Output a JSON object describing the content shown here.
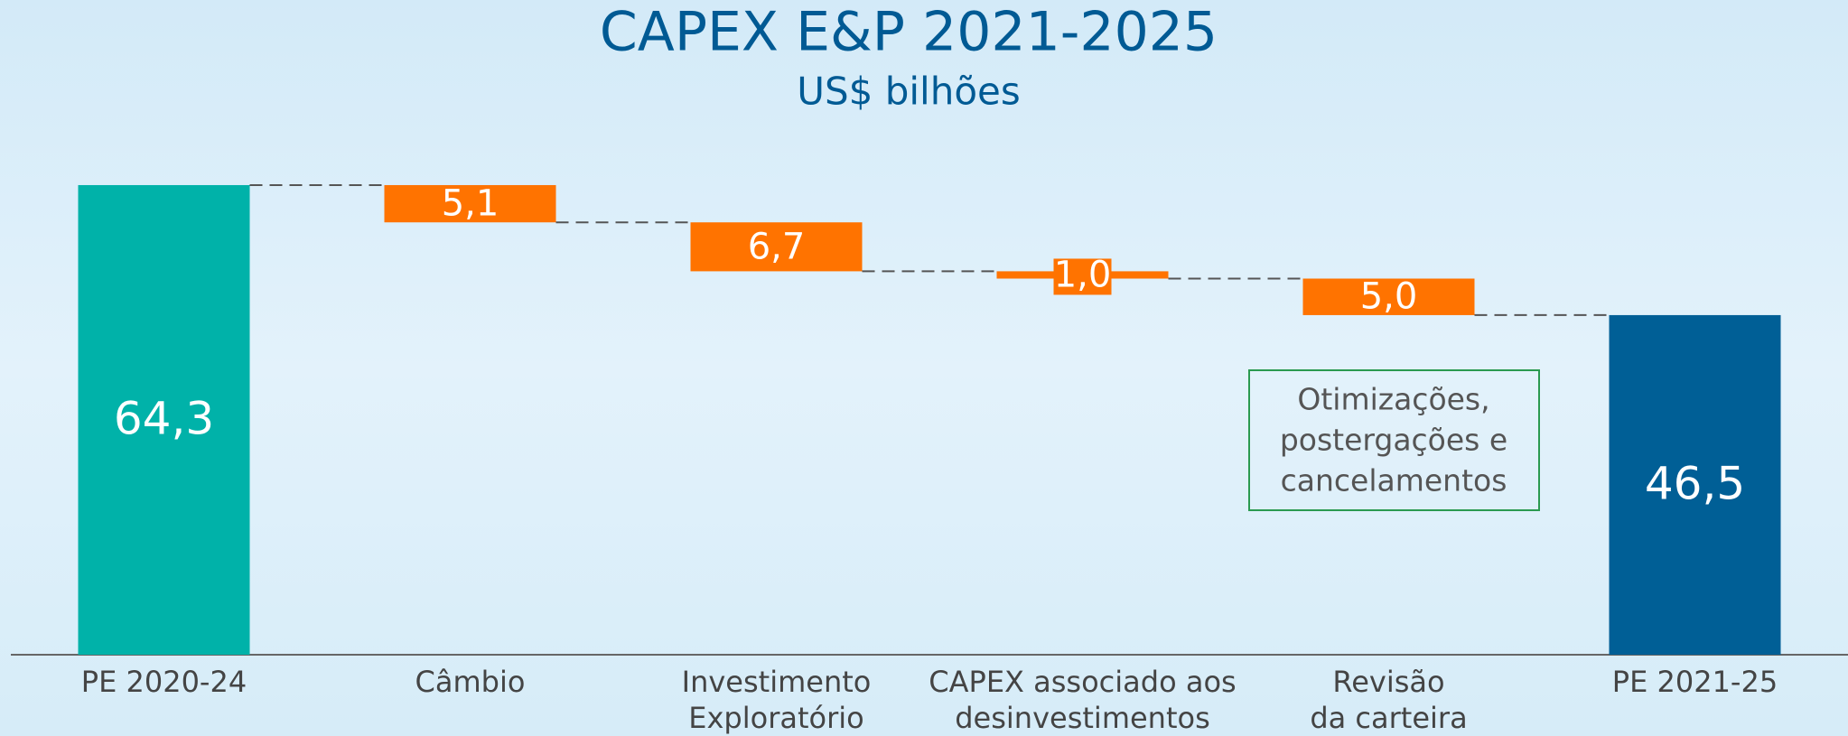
{
  "chart_data": {
    "type": "waterfall",
    "title": "CAPEX E&P 2021-2025",
    "subtitle": "US$ bilhões",
    "categories": [
      [
        "PE 2020-24"
      ],
      [
        "Câmbio"
      ],
      [
        "Investimento",
        "Exploratório"
      ],
      [
        "CAPEX associado aos",
        "desinvestimentos"
      ],
      [
        "Revisão",
        "da carteira"
      ],
      [
        "PE 2021-25"
      ]
    ],
    "values": [
      64.3,
      5.1,
      6.7,
      1.0,
      5.0,
      46.5
    ],
    "value_labels": [
      "64,3",
      "5,1",
      "6,7",
      "1,0",
      "5,0",
      "46,5"
    ],
    "measures": [
      "total",
      "decrease",
      "decrease",
      "decrease",
      "decrease",
      "total"
    ],
    "colors": [
      "#00b2a9",
      "#ff7300",
      "#ff7300",
      "#ff7300",
      "#ff7300",
      "#005f96"
    ],
    "ylim": [
      0,
      80
    ],
    "annotation": [
      "Otimizações,",
      "postergações e",
      "cancelamentos"
    ]
  }
}
